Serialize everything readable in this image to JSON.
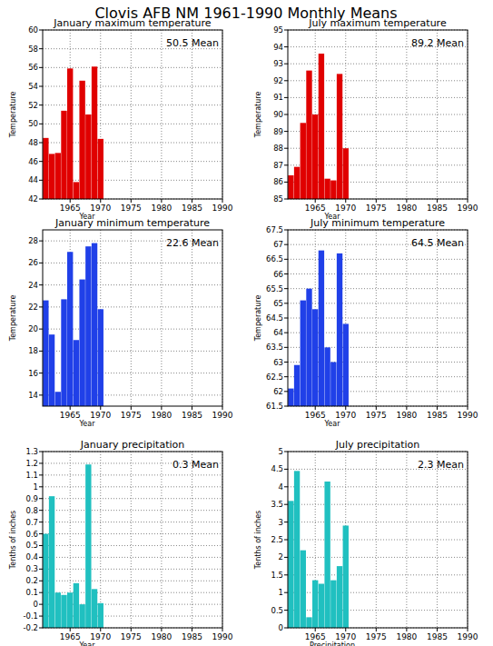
{
  "title": "Clovis AFB NM  1961-1990 Monthly Means",
  "chart_data": [
    {
      "type": "bar",
      "title": "January maximum temperature",
      "x_label": "Year",
      "y_label": "Temperature",
      "x": [
        1961,
        1962,
        1963,
        1964,
        1965,
        1966,
        1967,
        1968,
        1969,
        1970
      ],
      "values": [
        48.5,
        46.8,
        46.9,
        51.4,
        55.9,
        43.8,
        54.6,
        51.0,
        56.1,
        48.4
      ],
      "color": "#e00000",
      "xlim": [
        1960.5,
        1990
      ],
      "xticks": [
        1965,
        1970,
        1975,
        1980,
        1985,
        1990
      ],
      "ylim": [
        42,
        60
      ],
      "yticks": [
        42,
        44,
        46,
        48,
        50,
        52,
        54,
        56,
        58,
        60
      ],
      "grid": true,
      "mean": {
        "value": 50.5,
        "label": "50.5 Mean"
      }
    },
    {
      "type": "bar",
      "title": "July maximum temperature",
      "x_label": "Year",
      "y_label": "Temperature",
      "x": [
        1961,
        1962,
        1963,
        1964,
        1965,
        1966,
        1967,
        1968,
        1969,
        1970
      ],
      "values": [
        86.4,
        86.9,
        89.5,
        92.6,
        90.0,
        93.6,
        86.2,
        86.1,
        92.4,
        88.0
      ],
      "color": "#e00000",
      "xlim": [
        1960.5,
        1990
      ],
      "xticks": [
        1965,
        1970,
        1975,
        1980,
        1985,
        1990
      ],
      "ylim": [
        85,
        95
      ],
      "yticks": [
        85,
        86,
        87,
        88,
        89,
        90,
        91,
        92,
        93,
        94,
        95
      ],
      "grid": true,
      "mean": {
        "value": 89.2,
        "label": "89.2 Mean"
      }
    },
    {
      "type": "bar",
      "title": "January minimum temperature",
      "x_label": "Year",
      "y_label": "Temperature",
      "x": [
        1961,
        1962,
        1963,
        1964,
        1965,
        1966,
        1967,
        1968,
        1969,
        1970
      ],
      "values": [
        22.6,
        19.5,
        14.3,
        22.7,
        27.0,
        19.0,
        24.5,
        27.5,
        27.8,
        21.8
      ],
      "color": "#2040e8",
      "xlim": [
        1960.5,
        1990
      ],
      "xticks": [
        1965,
        1970,
        1975,
        1980,
        1985,
        1990
      ],
      "ylim": [
        13,
        29
      ],
      "yticks": [
        14,
        16,
        18,
        20,
        22,
        24,
        26,
        28
      ],
      "grid": true,
      "mean": {
        "value": 22.6,
        "label": "22.6 Mean"
      }
    },
    {
      "type": "bar",
      "title": "July minimum temperature",
      "x_label": "Year",
      "y_label": "Temperature",
      "x": [
        1961,
        1962,
        1963,
        1964,
        1965,
        1966,
        1967,
        1968,
        1969,
        1970
      ],
      "values": [
        62.1,
        62.9,
        65.1,
        65.5,
        64.8,
        66.8,
        63.5,
        63.0,
        66.7,
        64.3
      ],
      "color": "#2040e8",
      "xlim": [
        1960.5,
        1990
      ],
      "xticks": [
        1965,
        1970,
        1975,
        1980,
        1985,
        1990
      ],
      "ylim": [
        61.5,
        67.5
      ],
      "yticks": [
        61.5,
        62,
        62.5,
        63,
        63.5,
        64,
        64.5,
        65,
        65.5,
        66,
        66.5,
        67,
        67.5
      ],
      "grid": true,
      "mean": {
        "value": 64.5,
        "label": "64.5 Mean"
      }
    },
    {
      "type": "bar",
      "title": "January precipitation",
      "x_label": "Year",
      "y_label": "Tenths of inches",
      "x": [
        1961,
        1962,
        1963,
        1964,
        1965,
        1966,
        1967,
        1968,
        1969,
        1970
      ],
      "values": [
        0.6,
        0.92,
        0.1,
        0.08,
        0.1,
        0.18,
        0.0,
        1.19,
        0.13,
        0.01
      ],
      "color": "#20c0c0",
      "xlim": [
        1960.5,
        1990
      ],
      "xticks": [
        1965,
        1970,
        1975,
        1980,
        1985,
        1990
      ],
      "ylim": [
        -0.2,
        1.3
      ],
      "yticks": [
        -0.2,
        -0.1,
        0,
        0.1,
        0.2,
        0.3,
        0.4,
        0.5,
        0.6,
        0.7,
        0.8,
        0.9,
        1,
        1.1,
        1.2,
        1.3
      ],
      "grid": true,
      "mean": {
        "value": 0.3,
        "label": "0.3 Mean"
      }
    },
    {
      "type": "bar",
      "title": "July precipitation",
      "x_label": "Precipitation",
      "y_label": "Tenths of inches",
      "x": [
        1961,
        1962,
        1963,
        1964,
        1965,
        1966,
        1967,
        1968,
        1969,
        1970
      ],
      "values": [
        3.6,
        4.45,
        2.2,
        0.3,
        1.35,
        1.25,
        4.15,
        1.35,
        1.75,
        2.9
      ],
      "color": "#20c0c0",
      "xlim": [
        1960.5,
        1990
      ],
      "xticks": [
        1965,
        1970,
        1975,
        1980,
        1985,
        1990
      ],
      "ylim": [
        0,
        5
      ],
      "yticks": [
        0,
        0.5,
        1,
        1.5,
        2,
        2.5,
        3,
        3.5,
        4,
        4.5,
        5
      ],
      "grid": true,
      "mean": {
        "value": 2.3,
        "label": "2.3 Mean"
      }
    }
  ]
}
